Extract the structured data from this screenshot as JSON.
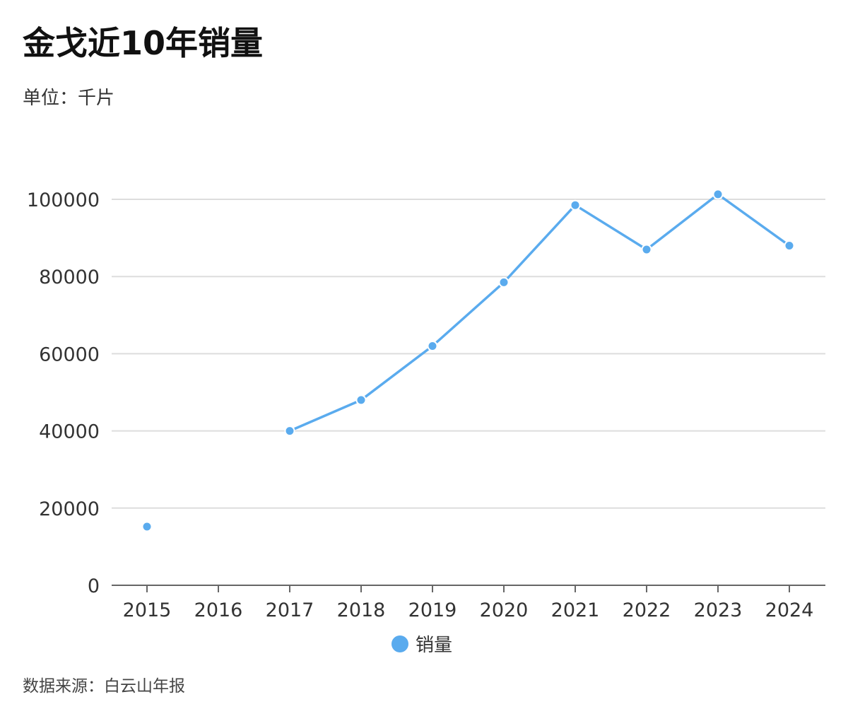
{
  "header": {
    "title": "金戈近10年销量",
    "subtitle": "单位：千片"
  },
  "footer": {
    "source": "数据来源：白云山年报"
  },
  "legend": {
    "label": "销量"
  },
  "colors": {
    "series": "#5aabee",
    "grid": "#dddddd",
    "axis": "#666666"
  },
  "chart_data": {
    "type": "line",
    "title": "金戈近10年销量",
    "subtitle": "单位：千片",
    "categories": [
      "2015",
      "2016",
      "2017",
      "2018",
      "2019",
      "2020",
      "2021",
      "2022",
      "2023",
      "2024"
    ],
    "series": [
      {
        "name": "销量",
        "values": [
          15200,
          null,
          40000,
          48000,
          62000,
          78500,
          98500,
          87000,
          101300,
          88000
        ]
      }
    ],
    "xlabel": "",
    "ylabel": "",
    "ylim": [
      0,
      100000
    ],
    "yticks": [
      0,
      20000,
      40000,
      60000,
      80000,
      100000
    ],
    "grid": true,
    "legend_position": "bottom"
  }
}
